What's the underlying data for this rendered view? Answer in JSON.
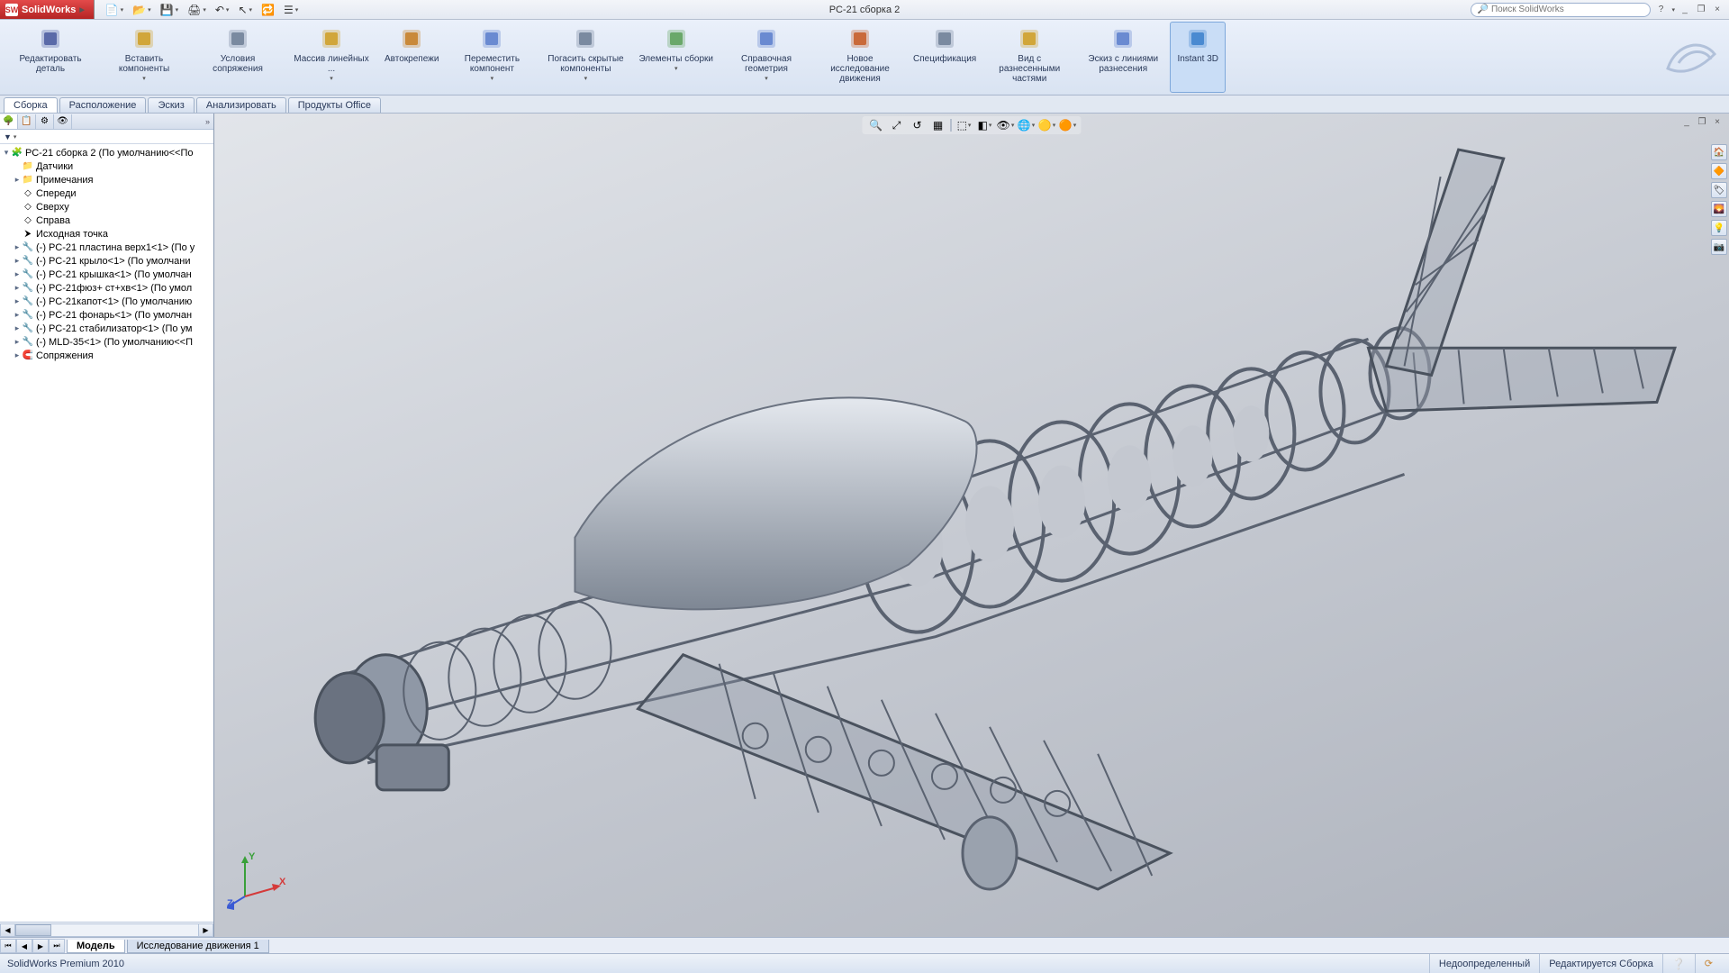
{
  "app": {
    "name": "SolidWorks",
    "document_title": "РС-21 сборка 2"
  },
  "search": {
    "placeholder": "Поиск SolidWorks"
  },
  "window_buttons": {
    "help": "?",
    "min": "_",
    "restore": "❐",
    "close": "×"
  },
  "qat": [
    {
      "name": "new",
      "glyph": "📄",
      "dropdown": true
    },
    {
      "name": "open",
      "glyph": "📂",
      "dropdown": true
    },
    {
      "name": "save",
      "glyph": "💾",
      "dropdown": true
    },
    {
      "name": "print",
      "glyph": "🖨",
      "dropdown": true
    },
    {
      "name": "undo",
      "glyph": "↶",
      "dropdown": true
    },
    {
      "name": "select",
      "glyph": "↖",
      "dropdown": true
    },
    {
      "name": "rebuild",
      "glyph": "🔁",
      "dropdown": false
    },
    {
      "name": "options",
      "glyph": "☰",
      "dropdown": true
    }
  ],
  "ribbon": [
    {
      "name": "edit-part",
      "label": "Редактировать деталь",
      "dropdown": false,
      "color": "#5a6aa8"
    },
    {
      "name": "insert-components",
      "label": "Вставить компоненты",
      "dropdown": true,
      "color": "#d1a63a"
    },
    {
      "name": "mate-conditions",
      "label": "Условия сопряжения",
      "dropdown": false,
      "color": "#7a8aa0"
    },
    {
      "name": "linear-pattern",
      "label": "Массив линейных ...",
      "dropdown": true,
      "color": "#d1a63a"
    },
    {
      "name": "smart-fasteners",
      "label": "Автокрепежи",
      "dropdown": false,
      "color": "#c9893a"
    },
    {
      "name": "move-component",
      "label": "Переместить компонент",
      "dropdown": true,
      "color": "#6a8ad1"
    },
    {
      "name": "hide-components",
      "label": "Погасить скрытые компоненты",
      "dropdown": true,
      "color": "#7a8aa0"
    },
    {
      "name": "assembly-features",
      "label": "Элементы сборки",
      "dropdown": true,
      "color": "#6aa86a"
    },
    {
      "name": "reference-geom",
      "label": "Справочная геометрия",
      "dropdown": true,
      "color": "#6a8ad1"
    },
    {
      "name": "new-motion-study",
      "label": "Новое исследование движения",
      "dropdown": false,
      "color": "#c96a3a"
    },
    {
      "name": "bom",
      "label": "Спецификация",
      "dropdown": false,
      "color": "#7a8aa0"
    },
    {
      "name": "exploded-view",
      "label": "Вид с разнесенными частями",
      "dropdown": false,
      "color": "#d1a63a"
    },
    {
      "name": "explode-lines",
      "label": "Эскиз с линиями разнесения",
      "dropdown": false,
      "color": "#6a8ad1"
    },
    {
      "name": "instant3d",
      "label": "Instant 3D",
      "dropdown": false,
      "color": "#4a8ad1",
      "active": true
    }
  ],
  "ctx_tabs": [
    {
      "name": "assembly",
      "label": "Сборка",
      "active": true
    },
    {
      "name": "layout",
      "label": "Расположение",
      "active": false
    },
    {
      "name": "sketch",
      "label": "Эскиз",
      "active": false
    },
    {
      "name": "analyze",
      "label": "Анализировать",
      "active": false
    },
    {
      "name": "office",
      "label": "Продукты Office",
      "active": false
    }
  ],
  "fm_tabs": [
    "tree",
    "property",
    "config",
    "display"
  ],
  "fm_filter": "▼",
  "tree": [
    {
      "exp": "▾",
      "ico": "asm",
      "label": "РС-21 сборка 2  (По умолчанию<<По",
      "indent": 0
    },
    {
      "exp": "",
      "ico": "folder",
      "label": "Датчики",
      "indent": 1
    },
    {
      "exp": "▸",
      "ico": "folder",
      "label": "Примечания",
      "indent": 1
    },
    {
      "exp": "",
      "ico": "plane",
      "label": "Спереди",
      "indent": 1
    },
    {
      "exp": "",
      "ico": "plane",
      "label": "Сверху",
      "indent": 1
    },
    {
      "exp": "",
      "ico": "plane",
      "label": "Справа",
      "indent": 1
    },
    {
      "exp": "",
      "ico": "origin",
      "label": "Исходная точка",
      "indent": 1
    },
    {
      "exp": "▸",
      "ico": "part",
      "label": "(-) РС-21 пластина верх1<1> (По у",
      "indent": 1
    },
    {
      "exp": "▸",
      "ico": "part",
      "label": "(-) РС-21 крыло<1> (По умолчани",
      "indent": 1
    },
    {
      "exp": "▸",
      "ico": "part",
      "label": "(-) РС-21 крышка<1> (По умолчан",
      "indent": 1
    },
    {
      "exp": "▸",
      "ico": "part",
      "label": "(-) РС-21фюз+ ст+хв<1> (По умол",
      "indent": 1
    },
    {
      "exp": "▸",
      "ico": "part",
      "label": "(-) РС-21капот<1> (По умолчанию",
      "indent": 1
    },
    {
      "exp": "▸",
      "ico": "part",
      "label": "(-) РС-21 фонарь<1> (По умолчан",
      "indent": 1
    },
    {
      "exp": "▸",
      "ico": "part",
      "label": "(-) РС-21 стабилизатор<1> (По ум",
      "indent": 1
    },
    {
      "exp": "▸",
      "ico": "part",
      "label": "(-) MLD-35<1> (По умолчанию<<П",
      "indent": 1
    },
    {
      "exp": "▸",
      "ico": "mates",
      "label": "Сопряжения",
      "indent": 1
    }
  ],
  "hud": [
    {
      "name": "zoom-fit",
      "glyph": "🔍"
    },
    {
      "name": "zoom-area",
      "glyph": "⤢"
    },
    {
      "name": "prev-view",
      "glyph": "↺"
    },
    {
      "name": "section",
      "glyph": "▦"
    },
    {
      "sep": true
    },
    {
      "name": "view-orient",
      "glyph": "⬚",
      "dropdown": true
    },
    {
      "name": "display-style",
      "glyph": "◧",
      "dropdown": true
    },
    {
      "name": "hide-show",
      "glyph": "👁",
      "dropdown": true
    },
    {
      "name": "scene",
      "glyph": "🌐",
      "dropdown": true
    },
    {
      "name": "appearance",
      "glyph": "🟡",
      "dropdown": true
    },
    {
      "name": "render",
      "glyph": "🟠",
      "dropdown": true
    }
  ],
  "rail": [
    "home",
    "appearance",
    "decal",
    "scene",
    "light",
    "camera"
  ],
  "triad": {
    "x": "X",
    "y": "Y",
    "z": "Z",
    "x_color": "#d43a3a",
    "y_color": "#3aa03a",
    "z_color": "#3a5ad4"
  },
  "doc_tabs": {
    "model": "Модель",
    "motion": "Исследование движения 1"
  },
  "status": {
    "product": "SolidWorks Premium 2010",
    "under_defined": "Недоопределенный",
    "editing": "Редактируется Сборка"
  },
  "colors": {
    "viewport_top": "#e2e5ea",
    "viewport_bot": "#aeb3bd",
    "model_medium": "#8f98a6",
    "model_dark": "#5a6270",
    "model_light": "#c2c8d2",
    "canopy_hi": "#e4e8ee",
    "canopy_lo": "#7e8794"
  }
}
